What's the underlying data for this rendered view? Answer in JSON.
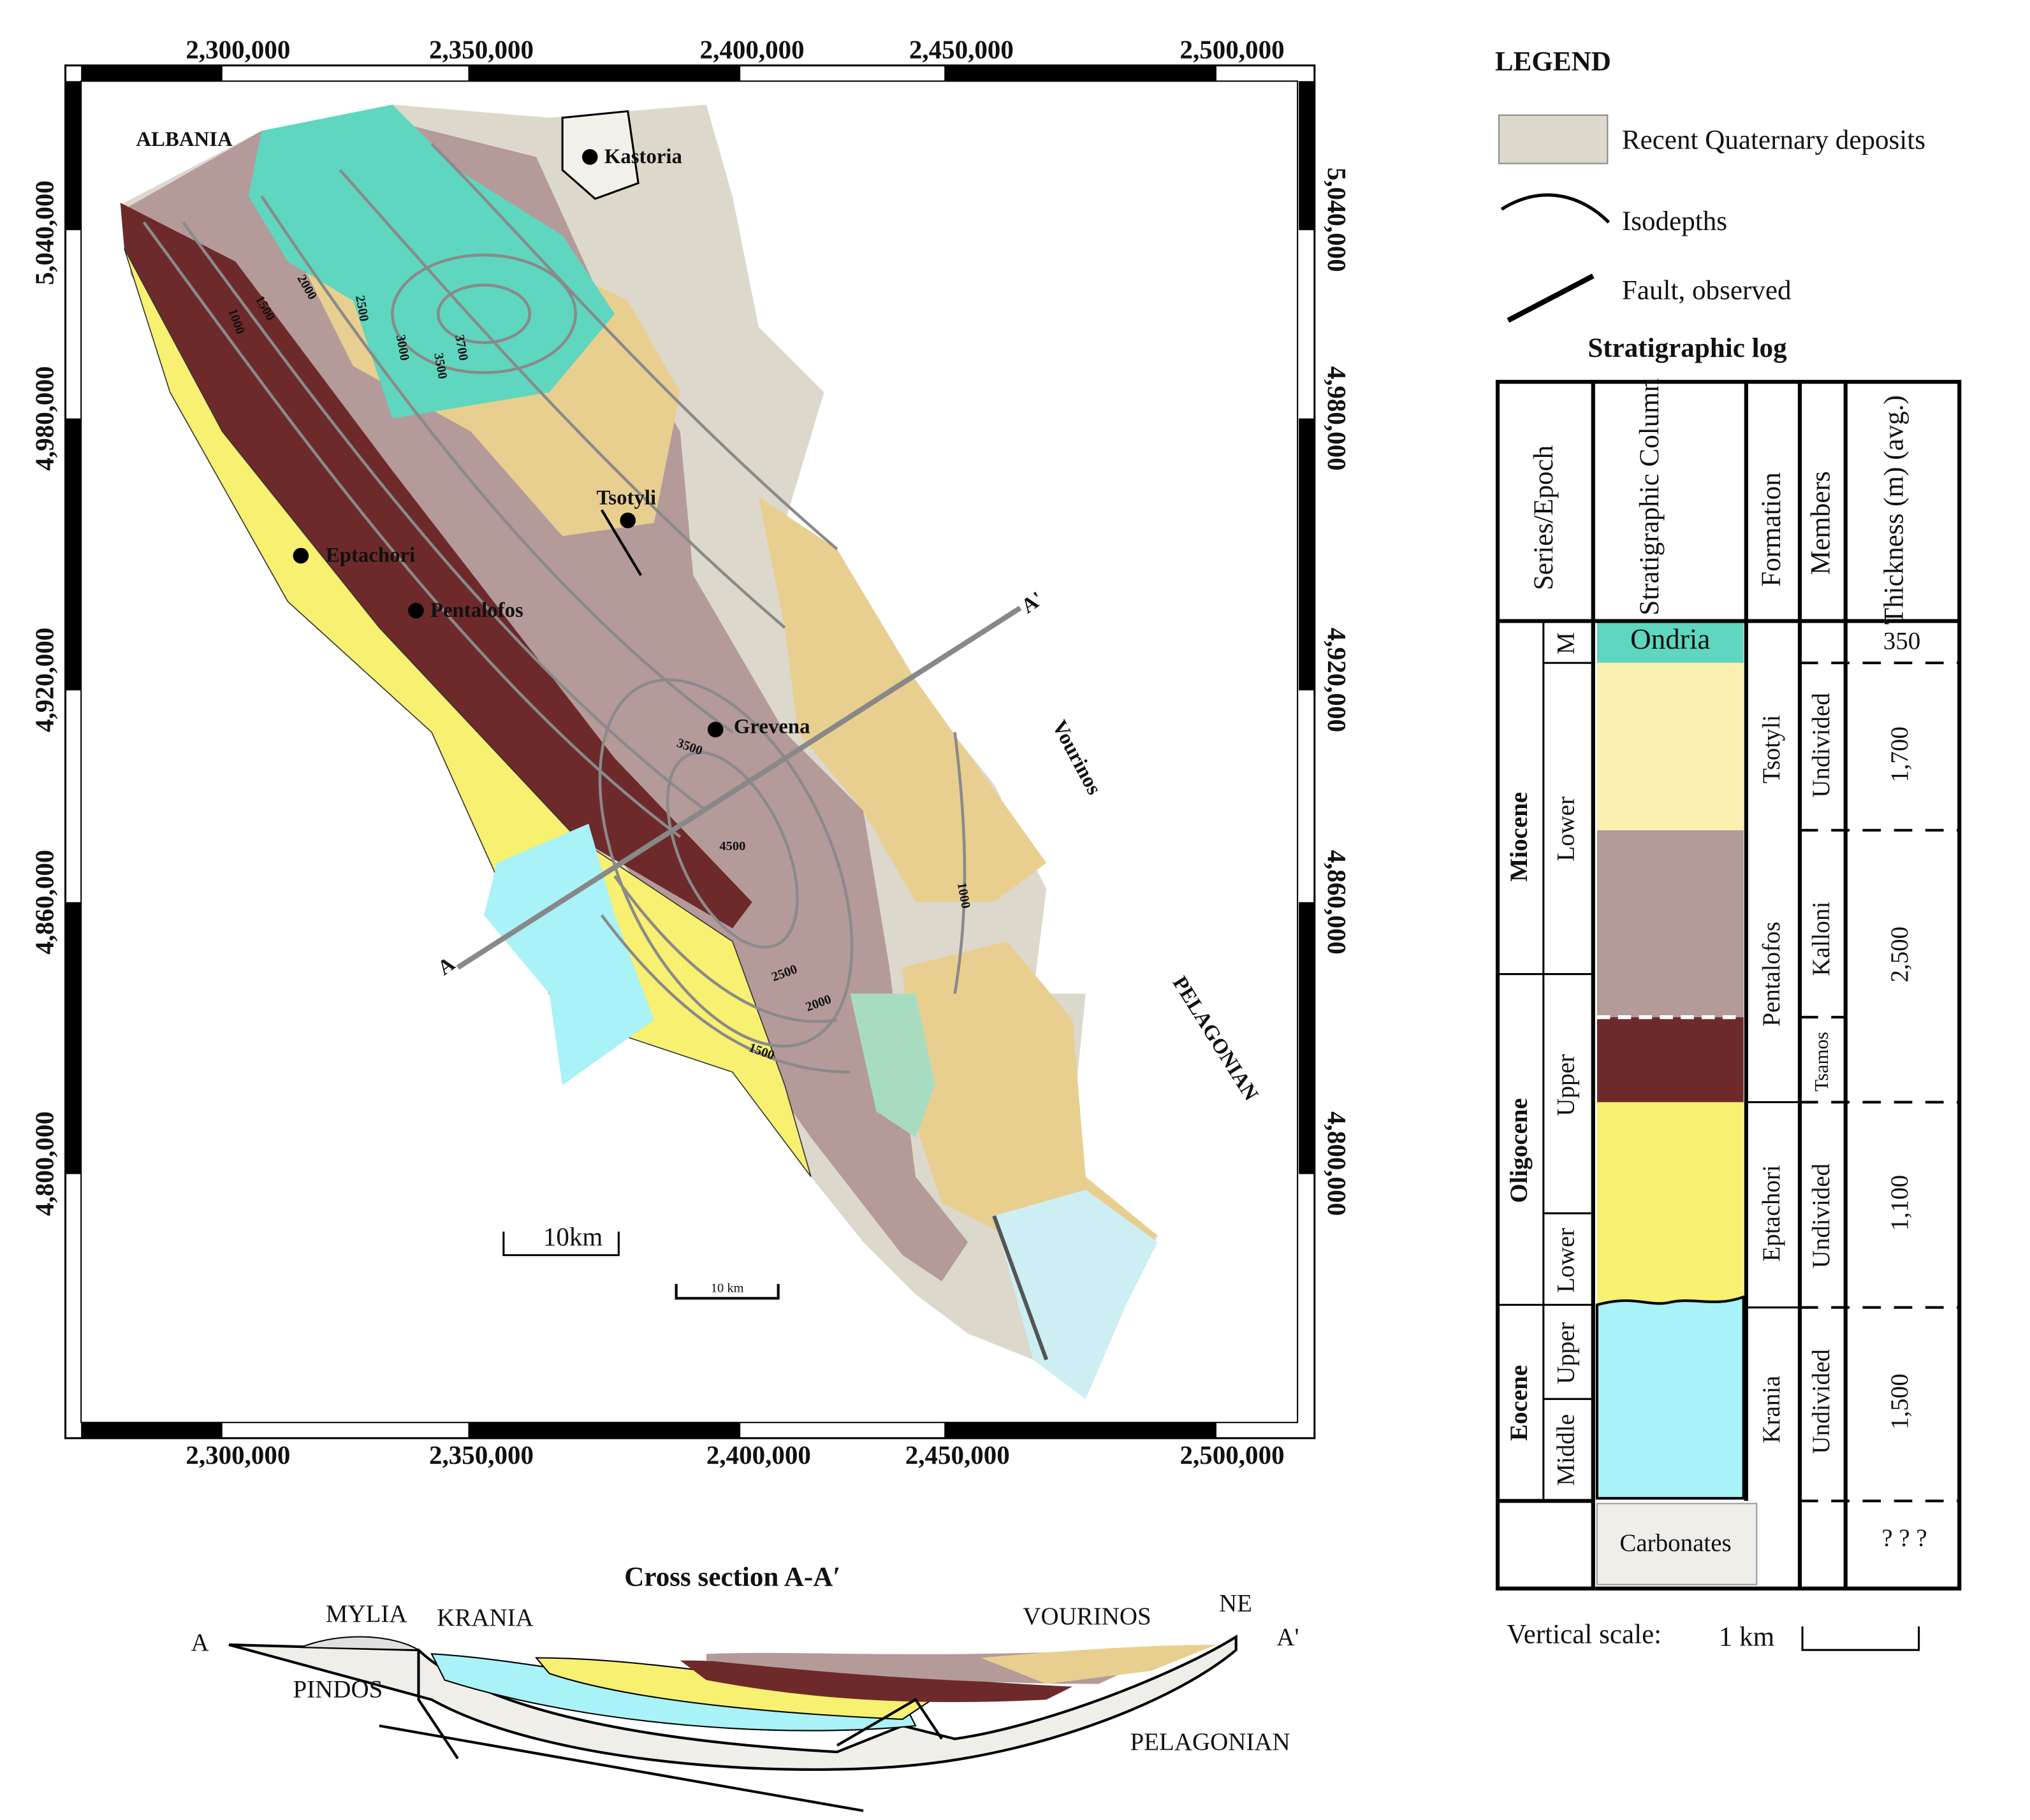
{
  "map": {
    "x_labels": [
      "2,300,000",
      "2,350,000",
      "2,400,000",
      "2,450,000",
      "2,500,000"
    ],
    "y_labels": [
      "5,040,000",
      "4,980,000",
      "4,920,000",
      "4,860,000",
      "4,800,000"
    ],
    "places": [
      "ALBANIA",
      "Kastoria",
      "Tsotyli",
      "Eptachori",
      "Pentalofos",
      "Grevena",
      "Vourinos",
      "PELAGONIAN"
    ],
    "section_ends": [
      "A",
      "A'"
    ],
    "isodepths": [
      "1000",
      "1500",
      "2000",
      "2500",
      "3000",
      "3500",
      "3700",
      "3500",
      "4500",
      "2500",
      "2000",
      "1500",
      "1000"
    ],
    "scale_bars": [
      "10km",
      "10 km"
    ]
  },
  "legend": {
    "title": "LEGEND",
    "items": [
      "Recent Quaternary deposits",
      "Isodepths",
      "Fault, observed"
    ]
  },
  "log": {
    "title": "Stratigraphic log",
    "headers": [
      "Series/Epoch",
      "Stratigraphic Column",
      "Formation",
      "Members",
      "Thickness (m) (avg.)"
    ],
    "epochs": [
      "Miocene",
      "Oligocene",
      "Eocene"
    ],
    "sub_epochs": [
      "M",
      "Lower",
      "Upper",
      "Lower",
      "Upper",
      "Middle"
    ],
    "column": [
      "Ondria",
      "Carbonates"
    ],
    "formations": [
      "Tsotyli",
      "Pentalofos",
      "Eptachori",
      "Krania"
    ],
    "members": [
      "Undivided",
      "Kalloni",
      "Tsamos",
      "Undivided",
      "Undivided"
    ],
    "thickness": [
      "350",
      "1,700",
      "2,500",
      "1,100",
      "1,500",
      "? ? ?"
    ],
    "vertical_scale": "Vertical scale:",
    "vertical_scale_unit": "1 km"
  },
  "cross_section": {
    "title": "Cross section A-A′",
    "labels": [
      "A",
      "MYLIA",
      "KRANIA",
      "PINDOS",
      "VOURINOS",
      "NE",
      "A'",
      "PELAGONIAN"
    ]
  }
}
